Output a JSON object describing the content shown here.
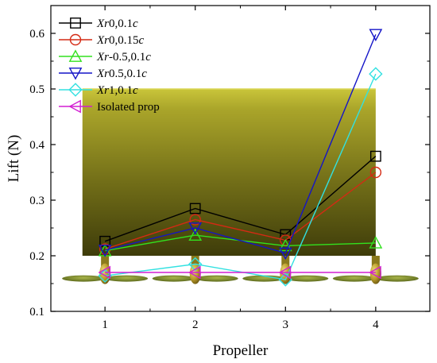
{
  "chart_data": {
    "type": "line",
    "title": "",
    "xlabel": "Propeller",
    "ylabel": "Lift (N)",
    "x": [
      1,
      2,
      3,
      4
    ],
    "xlim": [
      0.4,
      4.6
    ],
    "ylim": [
      0.1,
      0.65
    ],
    "xticks": [
      "1",
      "2",
      "3",
      "4"
    ],
    "yticks": [
      "0.1",
      "0.2",
      "0.3",
      "0.4",
      "0.5",
      "0.6"
    ],
    "grid": false,
    "legend_position": "top-left",
    "series": [
      {
        "name_parts": [
          "Xr",
          "0,0.1",
          "c"
        ],
        "color": "#000000",
        "marker": "square",
        "values": [
          0.226,
          0.285,
          0.238,
          0.379
        ]
      },
      {
        "name_parts": [
          "Xr",
          "0,0.15",
          "c"
        ],
        "color": "#d42a14",
        "marker": "circle",
        "values": [
          0.212,
          0.265,
          0.228,
          0.35
        ]
      },
      {
        "name_parts": [
          "Xr",
          "-0.5,0.1",
          "c"
        ],
        "color": "#32e11e",
        "marker": "triangle-up",
        "values": [
          0.209,
          0.237,
          0.218,
          0.223
        ]
      },
      {
        "name_parts": [
          "Xr",
          "0.5,0.1",
          "c"
        ],
        "color": "#1414c8",
        "marker": "triangle-down",
        "values": [
          0.21,
          0.25,
          0.205,
          0.598
        ]
      },
      {
        "name_parts": [
          "Xr",
          "1,0.1",
          "c"
        ],
        "color": "#32e1e1",
        "marker": "diamond",
        "values": [
          0.164,
          0.185,
          0.157,
          0.527
        ]
      },
      {
        "name": "Isolated prop",
        "color": "#d21ed2",
        "marker": "triangle-left",
        "values": [
          0.17,
          0.17,
          0.17,
          0.17
        ]
      }
    ]
  }
}
